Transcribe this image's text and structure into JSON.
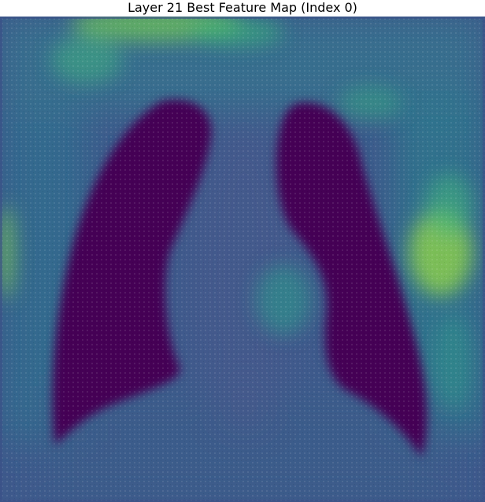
{
  "figure": {
    "title": "Layer 21 Best Feature Map (Index 0)"
  },
  "colormap": {
    "name": "viridis",
    "low": "#440154",
    "low_mid": "#3b528b",
    "mid": "#21918c",
    "high_mid": "#5ec962",
    "high": "#fde725"
  }
}
